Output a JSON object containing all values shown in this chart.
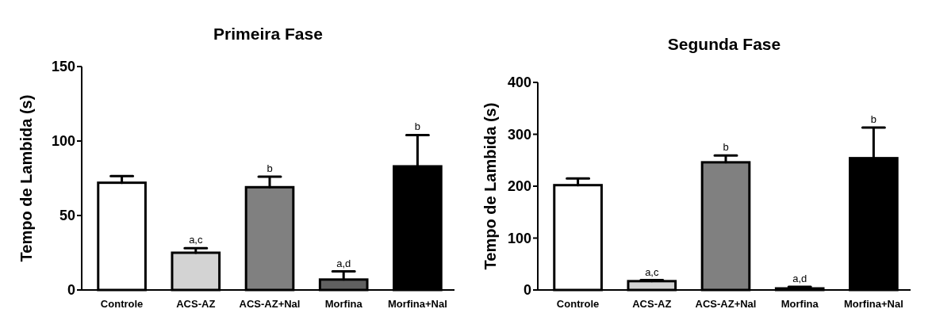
{
  "chart_data": [
    {
      "type": "bar",
      "title": "Primeira Fase",
      "ylabel": "Tempo de Lambida (s)",
      "categories": [
        "Controle",
        "ACS-AZ",
        "ACS-AZ+Nal",
        "Morfina",
        "Morfina+Nal"
      ],
      "values": [
        72,
        25,
        69,
        7,
        83
      ],
      "errors": [
        [
          72,
          76.5
        ],
        [
          25,
          28
        ],
        [
          69,
          76
        ],
        [
          7,
          12.5
        ],
        [
          83,
          104
        ]
      ],
      "colors": [
        "#ffffff",
        "#d3d3d3",
        "#808080",
        "#606060",
        "#000000"
      ],
      "ylim": [
        0,
        150
      ],
      "yticks": [
        0,
        50,
        100,
        150
      ],
      "annotations": [
        {
          "text": "a,c",
          "x": "ACS-AZ",
          "y": 28
        },
        {
          "text": "b",
          "x": "ACS-AZ+Nal",
          "y": 76
        },
        {
          "text": "a,d",
          "x": "Morfina",
          "y": 12.5
        },
        {
          "text": "b",
          "x": "Morfina+Nal",
          "y": 104
        }
      ]
    },
    {
      "type": "bar",
      "title": "Segunda Fase",
      "ylabel": "Tempo de Lambida (s)",
      "categories": [
        "Controle",
        "ACS-AZ",
        "ACS-AZ+Nal",
        "Morfina",
        "Morfina+Nal"
      ],
      "values": [
        202,
        17,
        246,
        3,
        254
      ],
      "errors": [
        [
          202,
          215
        ],
        [
          17,
          19
        ],
        [
          246,
          259
        ],
        [
          3,
          6
        ],
        [
          254,
          313
        ]
      ],
      "colors": [
        "#ffffff",
        "#d3d3d3",
        "#808080",
        "#606060",
        "#000000"
      ],
      "ylim": [
        0,
        400
      ],
      "yticks": [
        0,
        100,
        200,
        300,
        400
      ],
      "annotations": [
        {
          "text": "a,c",
          "x": "ACS-AZ",
          "y": 19
        },
        {
          "text": "b",
          "x": "ACS-AZ+Nal",
          "y": 259
        },
        {
          "text": "a,d",
          "x": "Morfina",
          "y": 6
        },
        {
          "text": "b",
          "x": "Morfina+Nal",
          "y": 313
        }
      ]
    }
  ]
}
